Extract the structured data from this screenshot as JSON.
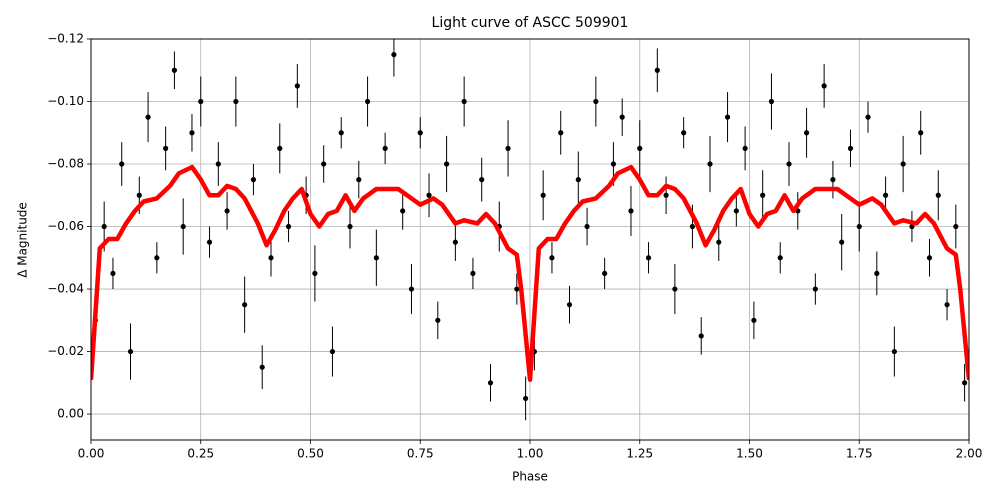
{
  "chart_data": {
    "type": "scatter",
    "title": "Light curve of ASCC 509901",
    "x_label": "Phase",
    "y_label": "Δ Magnitude",
    "xlim": [
      0,
      2
    ],
    "ylim": [
      0.0083,
      -0.12
    ],
    "grid": true,
    "xticks": [
      {
        "value": 0,
        "label": "0.00"
      },
      {
        "value": 0.25,
        "label": "0.25"
      },
      {
        "value": 0.5,
        "label": "0.50"
      },
      {
        "value": 0.75,
        "label": "0.75"
      },
      {
        "value": 1,
        "label": "1.00"
      },
      {
        "value": 1.25,
        "label": "1.25"
      },
      {
        "value": 1.5,
        "label": "1.50"
      },
      {
        "value": 1.75,
        "label": "1.75"
      },
      {
        "value": 2,
        "label": "2.00"
      }
    ],
    "yticks": [
      {
        "value": -0.12,
        "label": "−0.12"
      },
      {
        "value": -0.1,
        "label": "−0.10"
      },
      {
        "value": -0.08,
        "label": "−0.08"
      },
      {
        "value": -0.06,
        "label": "−0.06"
      },
      {
        "value": -0.04,
        "label": "−0.04"
      },
      {
        "value": -0.02,
        "label": "−0.02"
      },
      {
        "value": 0,
        "label": "0.00"
      }
    ],
    "series": [
      {
        "type": "scatter",
        "color": "#000000",
        "x": [
          0.01,
          0.03,
          0.05,
          0.07,
          0.09,
          0.11,
          0.13,
          0.15,
          0.17,
          0.19,
          0.21,
          0.23,
          0.25,
          0.27,
          0.29,
          0.31,
          0.33,
          0.35,
          0.37,
          0.39,
          0.41,
          0.43,
          0.45,
          0.47,
          0.49,
          0.51,
          0.53,
          0.55,
          0.57,
          0.59,
          0.61,
          0.63,
          0.65,
          0.67,
          0.69,
          0.71,
          0.73,
          0.75,
          0.77,
          0.79,
          0.81,
          0.83,
          0.85,
          0.87,
          0.89,
          0.91,
          0.93,
          0.95,
          0.97,
          0.99,
          1.01,
          1.03,
          1.05,
          1.07,
          1.09,
          1.11,
          1.13,
          1.15,
          1.17,
          1.19,
          1.21,
          1.23,
          1.25,
          1.27,
          1.29,
          1.31,
          1.33,
          1.35,
          1.37,
          1.39,
          1.41,
          1.43,
          1.45,
          1.47,
          1.49,
          1.51,
          1.53,
          1.55,
          1.57,
          1.59,
          1.61,
          1.63,
          1.65,
          1.67,
          1.69,
          1.71,
          1.73,
          1.75,
          1.77,
          1.79,
          1.81,
          1.83,
          1.85,
          1.87,
          1.89,
          1.91,
          1.93,
          1.95,
          1.97,
          1.99
        ],
        "values": [
          -0.03,
          -0.06,
          -0.045,
          -0.08,
          -0.02,
          -0.07,
          -0.095,
          -0.05,
          -0.085,
          -0.11,
          -0.06,
          -0.09,
          -0.1,
          -0.055,
          -0.08,
          -0.065,
          -0.1,
          -0.035,
          -0.075,
          -0.015,
          -0.05,
          -0.085,
          -0.06,
          -0.105,
          -0.07,
          -0.045,
          -0.08,
          -0.02,
          -0.09,
          -0.06,
          -0.075,
          -0.1,
          -0.05,
          -0.085,
          -0.115,
          -0.065,
          -0.04,
          -0.09,
          -0.07,
          -0.03,
          -0.08,
          -0.055,
          -0.1,
          -0.045,
          -0.075,
          -0.01,
          -0.06,
          -0.085,
          -0.04,
          -0.005,
          -0.02,
          -0.07,
          -0.05,
          -0.09,
          -0.035,
          -0.075,
          -0.06,
          -0.1,
          -0.045,
          -0.08,
          -0.095,
          -0.065,
          -0.085,
          -0.05,
          -0.11,
          -0.07,
          -0.04,
          -0.09,
          -0.06,
          -0.025,
          -0.08,
          -0.055,
          -0.095,
          -0.065,
          -0.085,
          -0.03,
          -0.07,
          -0.1,
          -0.05,
          -0.08,
          -0.065,
          -0.09,
          -0.04,
          -0.105,
          -0.075,
          -0.055,
          -0.085,
          -0.06,
          -0.095,
          -0.045,
          -0.07,
          -0.02,
          -0.08,
          -0.06,
          -0.09,
          -0.05,
          -0.07,
          -0.035,
          -0.06,
          -0.01
        ],
        "errors": [
          0.006,
          0.008,
          0.005,
          0.007,
          0.009,
          0.006,
          0.008,
          0.005,
          0.007,
          0.006,
          0.009,
          0.006,
          0.008,
          0.005,
          0.007,
          0.006,
          0.008,
          0.009,
          0.005,
          0.007,
          0.006,
          0.008,
          0.005,
          0.007,
          0.006,
          0.009,
          0.006,
          0.008,
          0.005,
          0.007,
          0.006,
          0.008,
          0.009,
          0.005,
          0.007,
          0.006,
          0.008,
          0.005,
          0.007,
          0.006,
          0.009,
          0.006,
          0.008,
          0.005,
          0.007,
          0.006,
          0.008,
          0.009,
          0.005,
          0.007,
          0.006,
          0.008,
          0.005,
          0.007,
          0.006,
          0.009,
          0.006,
          0.008,
          0.005,
          0.007,
          0.006,
          0.008,
          0.009,
          0.005,
          0.007,
          0.006,
          0.008,
          0.005,
          0.007,
          0.006,
          0.009,
          0.006,
          0.008,
          0.005,
          0.007,
          0.006,
          0.008,
          0.009,
          0.005,
          0.007,
          0.006,
          0.008,
          0.005,
          0.007,
          0.006,
          0.009,
          0.006,
          0.008,
          0.005,
          0.007,
          0.006,
          0.008,
          0.009,
          0.005,
          0.007,
          0.006,
          0.008,
          0.005,
          0.007,
          0.006
        ]
      },
      {
        "type": "line",
        "color": "#ff0000",
        "x": [
          0,
          0.02,
          0.04,
          0.06,
          0.08,
          0.1,
          0.12,
          0.15,
          0.18,
          0.2,
          0.23,
          0.25,
          0.27,
          0.29,
          0.31,
          0.33,
          0.35,
          0.38,
          0.4,
          0.42,
          0.44,
          0.46,
          0.48,
          0.5,
          0.52,
          0.54,
          0.56,
          0.58,
          0.6,
          0.62,
          0.65,
          0.68,
          0.7,
          0.73,
          0.75,
          0.78,
          0.8,
          0.83,
          0.85,
          0.88,
          0.9,
          0.92,
          0.95,
          0.97,
          0.98,
          1,
          1.02,
          1.04,
          1.06,
          1.08,
          1.1,
          1.12,
          1.15,
          1.18,
          1.2,
          1.23,
          1.25,
          1.27,
          1.29,
          1.31,
          1.33,
          1.35,
          1.38,
          1.4,
          1.42,
          1.44,
          1.46,
          1.48,
          1.5,
          1.52,
          1.54,
          1.56,
          1.58,
          1.6,
          1.62,
          1.65,
          1.68,
          1.7,
          1.73,
          1.75,
          1.78,
          1.8,
          1.83,
          1.85,
          1.88,
          1.9,
          1.92,
          1.95,
          1.97,
          1.98,
          2
        ],
        "values": [
          -0.011,
          -0.053,
          -0.056,
          -0.056,
          -0.061,
          -0.065,
          -0.068,
          -0.069,
          -0.073,
          -0.077,
          -0.079,
          -0.075,
          -0.07,
          -0.07,
          -0.073,
          -0.072,
          -0.069,
          -0.061,
          -0.054,
          -0.059,
          -0.065,
          -0.069,
          -0.072,
          -0.064,
          -0.06,
          -0.064,
          -0.065,
          -0.07,
          -0.065,
          -0.069,
          -0.072,
          -0.072,
          -0.072,
          -0.069,
          -0.067,
          -0.069,
          -0.067,
          -0.061,
          -0.062,
          -0.061,
          -0.064,
          -0.061,
          -0.053,
          -0.051,
          -0.04,
          -0.011,
          -0.053,
          -0.056,
          -0.056,
          -0.061,
          -0.065,
          -0.068,
          -0.069,
          -0.073,
          -0.077,
          -0.079,
          -0.075,
          -0.07,
          -0.07,
          -0.073,
          -0.072,
          -0.069,
          -0.061,
          -0.054,
          -0.059,
          -0.065,
          -0.069,
          -0.072,
          -0.064,
          -0.06,
          -0.064,
          -0.065,
          -0.07,
          -0.065,
          -0.069,
          -0.072,
          -0.072,
          -0.072,
          -0.069,
          -0.067,
          -0.069,
          -0.067,
          -0.061,
          -0.062,
          -0.061,
          -0.064,
          -0.061,
          -0.053,
          -0.051,
          -0.04,
          -0.011
        ]
      }
    ]
  }
}
